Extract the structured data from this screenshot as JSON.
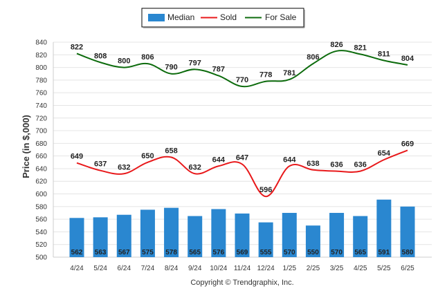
{
  "chart_data": {
    "type": "bar",
    "categories": [
      "4/24",
      "5/24",
      "6/24",
      "7/24",
      "8/24",
      "9/24",
      "10/24",
      "11/24",
      "12/24",
      "1/25",
      "2/25",
      "3/25",
      "4/25",
      "5/25",
      "6/25"
    ],
    "series": [
      {
        "name": "Median",
        "type": "bar",
        "color": "#2a87d0",
        "values": [
          562,
          563,
          567,
          575,
          578,
          565,
          576,
          569,
          555,
          570,
          550,
          570,
          565,
          591,
          580
        ]
      },
      {
        "name": "Sold",
        "type": "line",
        "color": "#e8181a",
        "values": [
          649,
          637,
          632,
          650,
          658,
          632,
          644,
          647,
          596,
          644,
          638,
          636,
          636,
          654,
          669
        ]
      },
      {
        "name": "For Sale",
        "type": "line",
        "color": "#0c6b0c",
        "values": [
          822,
          808,
          800,
          806,
          790,
          797,
          787,
          770,
          778,
          781,
          806,
          826,
          821,
          811,
          804
        ]
      }
    ],
    "ylabel": "Price (in $,000)",
    "ylim": [
      500,
      840
    ],
    "yticks": [
      500,
      520,
      540,
      560,
      580,
      600,
      620,
      640,
      660,
      680,
      700,
      720,
      740,
      760,
      780,
      800,
      820,
      840
    ],
    "grid": true,
    "legend_position": "top-center"
  },
  "footer": {
    "copyright": "Copyright © Trendgraphix, Inc."
  }
}
